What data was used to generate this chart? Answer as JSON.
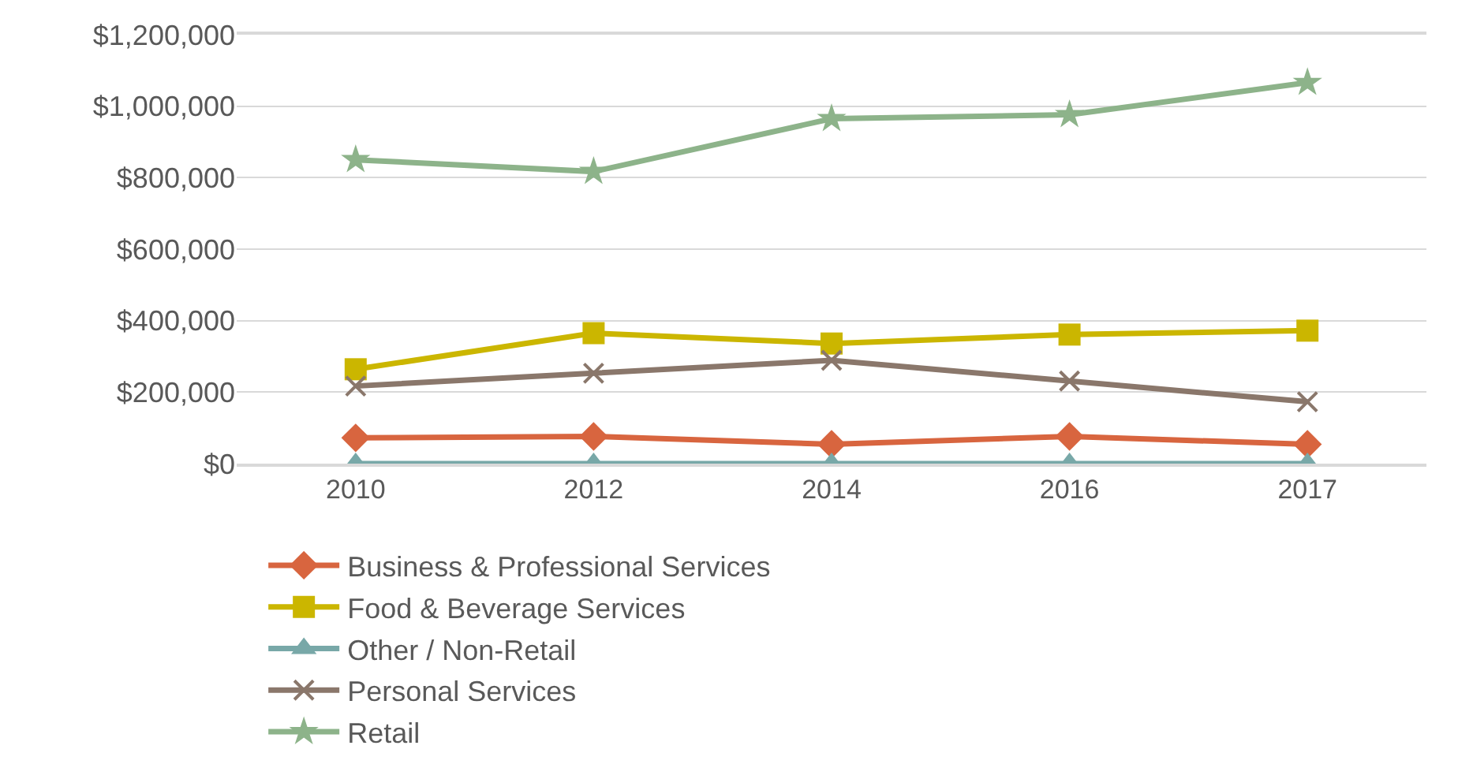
{
  "chart_data": {
    "type": "line",
    "categories": [
      "2010",
      "2012",
      "2014",
      "2016",
      "2017"
    ],
    "series": [
      {
        "name": "Business & Professional Services",
        "color": "#d8653f",
        "marker": "diamond",
        "values": [
          72000,
          76000,
          54000,
          76000,
          54000
        ]
      },
      {
        "name": "Food & Beverage Services",
        "color": "#cbb600",
        "marker": "square",
        "values": [
          264000,
          365000,
          336000,
          361000,
          372000
        ]
      },
      {
        "name": "Other / Non-Retail",
        "color": "#78a8a8",
        "marker": "triangle",
        "values": [
          0,
          0,
          0,
          0,
          0
        ]
      },
      {
        "name": "Personal Services",
        "color": "#8a776b",
        "marker": "cross",
        "values": [
          217000,
          253000,
          289000,
          231000,
          173000
        ]
      },
      {
        "name": "Retail",
        "color": "#8db38a",
        "marker": "star",
        "values": [
          850000,
          817000,
          965000,
          976000,
          1066000
        ]
      }
    ],
    "ylim": [
      0,
      1200000
    ],
    "yticks": [
      {
        "value": 0,
        "label": "$0"
      },
      {
        "value": 200000,
        "label": "$200,000"
      },
      {
        "value": 400000,
        "label": "$400,000"
      },
      {
        "value": 600000,
        "label": "$600,000"
      },
      {
        "value": 800000,
        "label": "$800,000"
      },
      {
        "value": 1000000,
        "label": "$1,000,000"
      },
      {
        "value": 1200000,
        "label": "$1,200,000"
      }
    ],
    "grid": "y",
    "legend": "bottom",
    "line_style": "solid"
  }
}
